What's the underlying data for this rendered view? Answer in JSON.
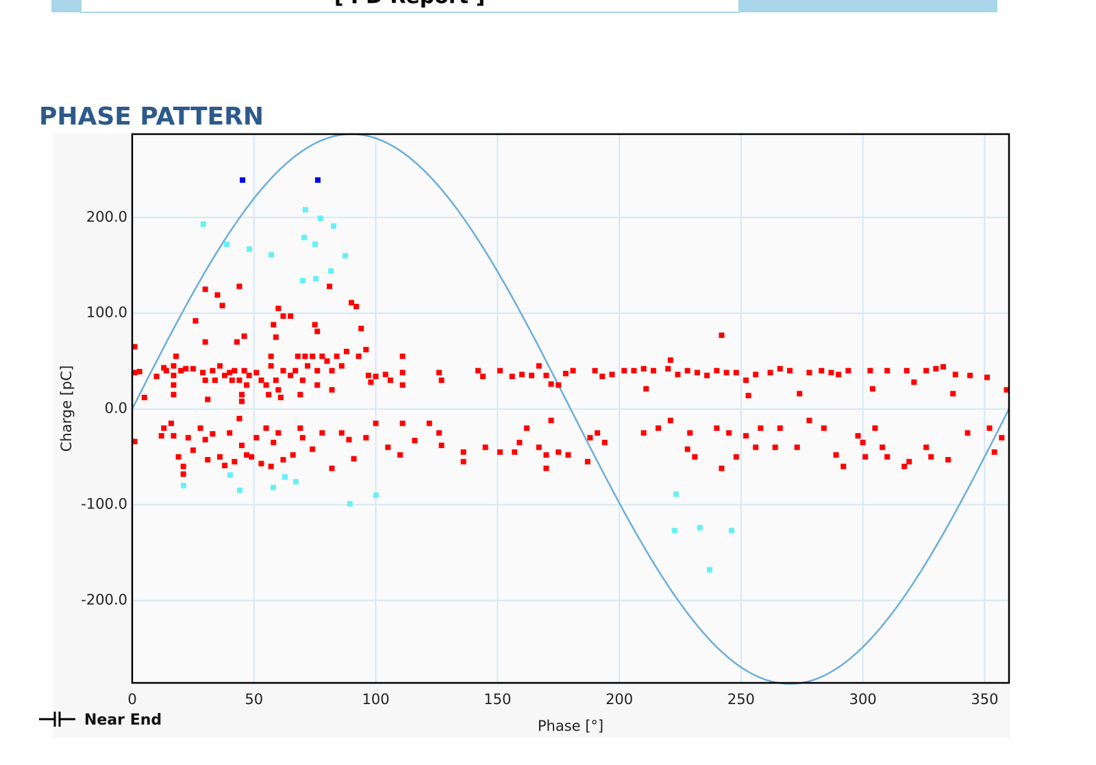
{
  "header": {
    "title": "[ PD Report ]"
  },
  "chart_data": {
    "type": "scatter",
    "section_title": "PHASE PATTERN",
    "x_label": "Phase [°]",
    "y_label": "Charge [pC]",
    "annotation": "Near End",
    "xlim": [
      0,
      360
    ],
    "ylim": [
      -286,
      287
    ],
    "xticks": [
      0,
      50,
      100,
      150,
      200,
      250,
      300,
      350
    ],
    "yticks": [
      {
        "value": -200,
        "label": "-200.0"
      },
      {
        "value": -100,
        "label": "-100.0"
      },
      {
        "value": 0,
        "label": "0.0"
      },
      {
        "value": 100,
        "label": "100.0"
      },
      {
        "value": 200,
        "label": "200.0"
      }
    ],
    "grid": true,
    "reference_curve": {
      "color": "#6aaedc",
      "amplitude": 287
    },
    "series": [
      {
        "color": "#ff0000",
        "x": [
          1,
          1,
          3,
          5,
          10,
          13,
          14,
          17,
          17,
          17,
          17,
          18,
          20,
          22,
          25,
          26,
          29,
          30,
          30,
          30,
          31,
          33,
          34,
          35,
          36,
          37,
          38,
          40,
          41,
          42,
          43,
          44,
          44,
          45,
          45,
          46,
          46,
          47,
          48,
          51,
          53,
          55,
          56,
          57,
          57,
          58,
          59,
          59,
          60,
          60,
          61,
          62,
          62,
          65,
          65,
          67,
          68,
          69,
          70,
          71,
          72,
          74,
          75,
          76,
          76,
          76,
          78,
          80,
          81,
          82,
          82,
          84,
          86,
          88,
          90,
          92,
          93,
          94,
          96,
          97,
          98,
          100,
          104,
          106,
          111,
          111,
          111,
          126,
          127,
          142,
          144,
          151,
          156,
          160,
          164,
          167,
          170,
          172,
          175,
          178,
          181,
          190,
          193,
          197,
          202,
          206,
          210,
          211,
          214,
          220,
          221,
          224,
          228,
          232,
          236,
          240,
          242,
          244,
          248,
          252,
          253,
          256,
          262,
          266,
          270,
          274,
          278,
          283,
          287,
          290,
          294,
          303,
          304,
          310,
          318,
          321,
          326,
          330,
          333,
          337,
          338,
          344,
          351,
          359,
          1,
          12,
          13,
          16,
          17,
          19,
          21,
          21,
          23,
          25,
          28,
          30,
          31,
          33,
          36,
          38,
          40,
          42,
          44,
          45,
          47,
          49,
          51,
          53,
          55,
          57,
          58,
          60,
          62,
          66,
          69,
          70,
          74,
          78,
          82,
          86,
          89,
          91,
          96,
          100,
          105,
          110,
          111,
          116,
          122,
          126,
          127,
          136,
          136,
          145,
          151,
          157,
          159,
          162,
          167,
          170,
          170,
          172,
          175,
          179,
          187,
          188,
          191,
          194,
          210,
          216,
          221,
          228,
          229,
          231,
          240,
          242,
          245,
          248,
          252,
          256,
          258,
          264,
          266,
          273,
          278,
          284,
          289,
          292,
          298,
          300,
          301,
          305,
          308,
          310,
          317,
          319,
          326,
          328,
          335,
          343,
          352,
          354,
          357
        ],
        "values": [
          65,
          38,
          39,
          12,
          34,
          43,
          40,
          45,
          35,
          25,
          15,
          55,
          40,
          42,
          42,
          92,
          38,
          125,
          70,
          30,
          10,
          40,
          30,
          119,
          45,
          108,
          35,
          38,
          30,
          40,
          70,
          128,
          30,
          15,
          8,
          76,
          40,
          25,
          35,
          38,
          30,
          25,
          15,
          45,
          55,
          88,
          75,
          30,
          105,
          20,
          12,
          97,
          40,
          97,
          35,
          40,
          55,
          15,
          30,
          55,
          45,
          55,
          88,
          81,
          40,
          25,
          55,
          50,
          128,
          40,
          20,
          55,
          45,
          60,
          111,
          107,
          55,
          84,
          62,
          35,
          28,
          34,
          36,
          30,
          55,
          38,
          25,
          38,
          30,
          40,
          34,
          40,
          34,
          36,
          35,
          45,
          35,
          26,
          25,
          37,
          40,
          40,
          34,
          36,
          40,
          40,
          42,
          21,
          40,
          42,
          51,
          36,
          40,
          38,
          35,
          40,
          77,
          38,
          38,
          30,
          14,
          36,
          38,
          42,
          40,
          16,
          38,
          40,
          38,
          36,
          40,
          40,
          21,
          40,
          40,
          28,
          40,
          42,
          44,
          16,
          36,
          35,
          33,
          20,
          -34,
          -28,
          -20,
          -15,
          -28,
          -50,
          -60,
          -68,
          -30,
          -43,
          -20,
          -32,
          -53,
          -26,
          -50,
          -59,
          -25,
          -55,
          -10,
          -38,
          -48,
          -50,
          -30,
          -57,
          -20,
          -60,
          -35,
          -25,
          -53,
          -48,
          -20,
          -30,
          -42,
          -25,
          -62,
          -25,
          -32,
          -52,
          -30,
          -15,
          -40,
          -48,
          -15,
          -33,
          -15,
          -25,
          -38,
          -45,
          -55,
          -40,
          -45,
          -45,
          -35,
          -20,
          -40,
          -48,
          -62,
          -12,
          -45,
          -48,
          -55,
          -30,
          -25,
          -35,
          -25,
          -20,
          -12,
          -42,
          -25,
          -50,
          -20,
          -62,
          -25,
          -50,
          -28,
          -40,
          -20,
          -40,
          -20,
          -40,
          -12,
          -20,
          -48,
          -60,
          -28,
          -35,
          -50,
          -20,
          -40,
          -50,
          -60,
          -55,
          -40,
          -50,
          -53,
          -25,
          -20,
          -45,
          -30
        ]
      },
      {
        "color": "#66f0f5",
        "x": [
          29.2,
          38.8,
          48.1,
          57.1,
          71.1,
          77.3,
          82.7,
          70.6,
          75.1,
          87.5,
          81.6,
          70,
          75.4,
          21.1,
          40.2,
          44.2,
          57.9,
          62.7,
          67.2,
          89.4,
          100.1,
          223.3,
          222.7,
          233.1,
          246.1,
          237.1
        ],
        "values": [
          193,
          172,
          167,
          161,
          208,
          199,
          191,
          179,
          172,
          160,
          144,
          134,
          136,
          -80,
          -69,
          -85,
          -82,
          -71,
          -76,
          -99,
          -90,
          -89,
          -127,
          -124,
          -127,
          -168
        ]
      },
      {
        "color": "#0000ee",
        "x": [
          45.3,
          76.2
        ],
        "values": [
          239,
          239
        ]
      }
    ]
  }
}
